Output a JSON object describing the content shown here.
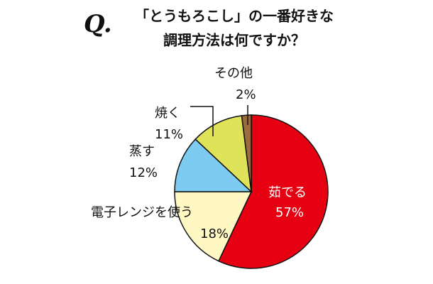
{
  "chart_data": {
    "type": "pie",
    "title_prefix": "Q.",
    "title": [
      "「とうもろこし」の一番好きな",
      "調理方法は何ですか？"
    ],
    "categories": [
      "茹でる",
      "電子レンジを使う",
      "蒸す",
      "焼く",
      "その他"
    ],
    "values": [
      57,
      18,
      12,
      11,
      2
    ],
    "value_labels": [
      "57%",
      "18%",
      "12%",
      "11%",
      "2%"
    ],
    "colors": [
      "#e60012",
      "#fff8c2",
      "#7ecbf2",
      "#dfe35a",
      "#9b6b3c"
    ]
  }
}
